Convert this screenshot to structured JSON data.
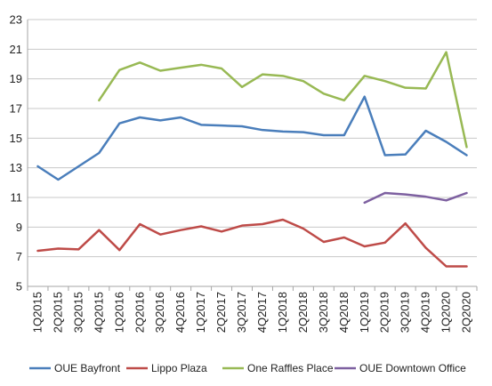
{
  "chart_data": {
    "type": "line",
    "title": "",
    "xlabel": "",
    "ylabel": "",
    "ylim": [
      5,
      23
    ],
    "yticks": [
      5,
      7,
      9,
      11,
      13,
      15,
      17,
      19,
      21,
      23
    ],
    "grid": "horizontal",
    "legend_position": "bottom",
    "categories": [
      "1Q2015",
      "2Q2015",
      "3Q2015",
      "4Q2015",
      "1Q2016",
      "2Q2016",
      "3Q2016",
      "4Q2016",
      "1Q2017",
      "2Q2017",
      "3Q2017",
      "4Q2017",
      "1Q2018",
      "2Q2018",
      "3Q2018",
      "4Q2018",
      "1Q2019",
      "2Q2019",
      "3Q2019",
      "4Q2019",
      "1Q2020",
      "2Q2020"
    ],
    "series": [
      {
        "name": "OUE Bayfront",
        "color": "#4a7ebb",
        "values": [
          13.1,
          12.2,
          13.1,
          14.0,
          16.0,
          16.4,
          16.2,
          16.4,
          15.9,
          15.85,
          15.8,
          15.55,
          15.45,
          15.4,
          15.2,
          15.2,
          17.8,
          13.85,
          13.9,
          15.5,
          14.75,
          13.85
        ]
      },
      {
        "name": "Lippo Plaza",
        "color": "#be4b48",
        "values": [
          7.4,
          7.55,
          7.5,
          8.8,
          7.45,
          9.2,
          8.5,
          8.8,
          9.05,
          8.7,
          9.1,
          9.2,
          9.5,
          8.9,
          8.0,
          8.3,
          7.7,
          7.95,
          9.25,
          7.6,
          6.35,
          6.35
        ]
      },
      {
        "name": "One Raffles Place",
        "color": "#98b954",
        "values": [
          null,
          null,
          null,
          17.55,
          19.6,
          20.1,
          19.55,
          19.75,
          19.95,
          19.7,
          18.45,
          19.3,
          19.2,
          18.85,
          18.0,
          17.55,
          19.2,
          18.85,
          18.4,
          18.35,
          20.8,
          14.4
        ]
      },
      {
        "name": "OUE Downtown Office",
        "color": "#7d60a0",
        "values": [
          null,
          null,
          null,
          null,
          null,
          null,
          null,
          null,
          null,
          null,
          null,
          null,
          null,
          null,
          null,
          null,
          10.65,
          11.3,
          11.2,
          11.05,
          10.8,
          11.3
        ]
      }
    ]
  }
}
